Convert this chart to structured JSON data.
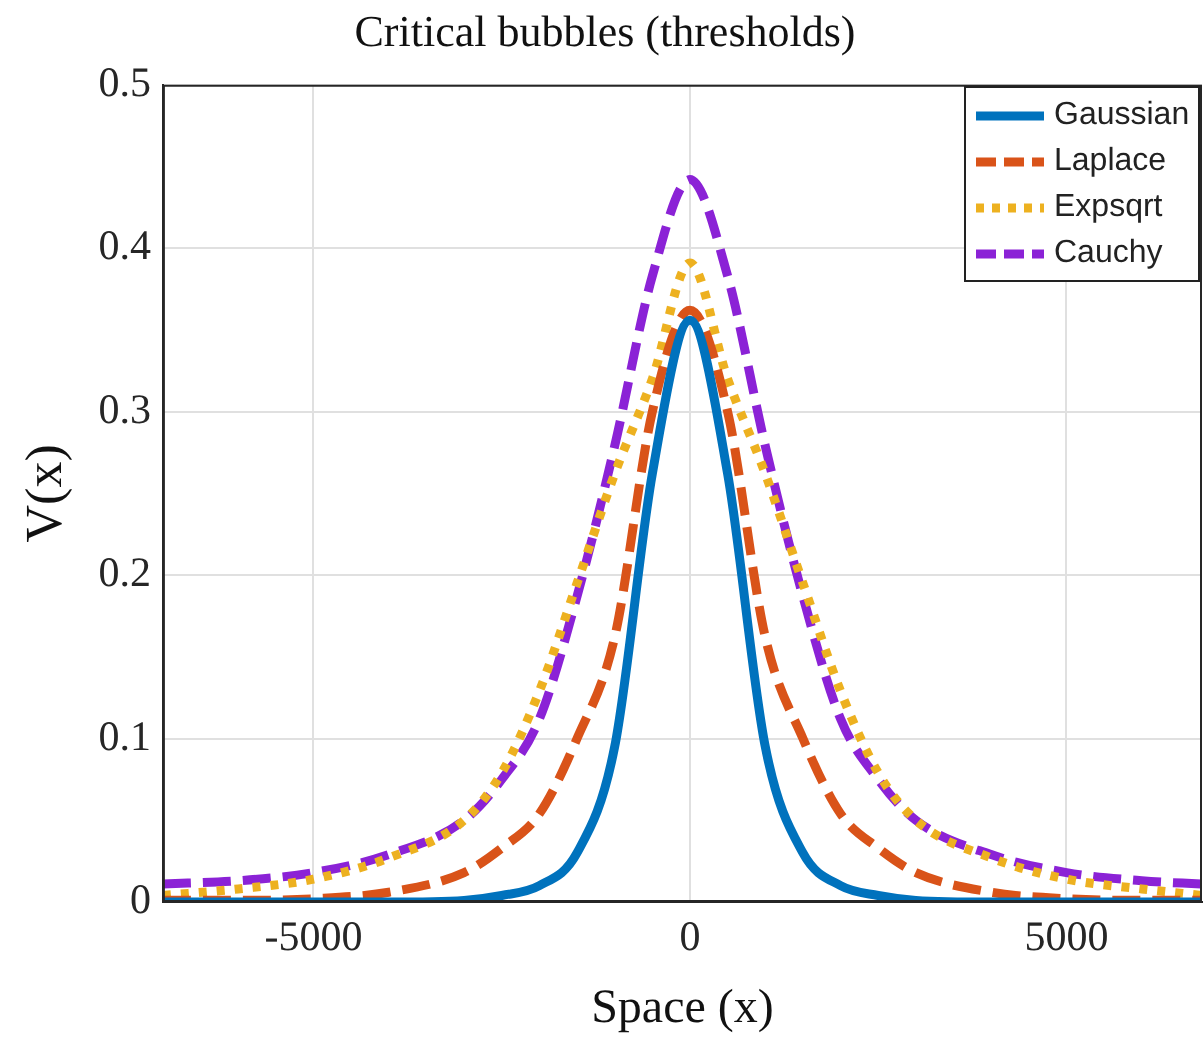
{
  "chart_data": {
    "type": "line",
    "title": "Critical bubbles (thresholds)",
    "xlabel": "Space (x)",
    "ylabel": "V(x)",
    "x": [
      -7000,
      -6000,
      -5000,
      -4000,
      -3000,
      -2500,
      -2000,
      -1500,
      -1000,
      -500,
      0,
      500,
      1000,
      1500,
      2000,
      2500,
      3000,
      4000,
      5000,
      6000,
      6800
    ],
    "series": [
      {
        "name": "Gaussian",
        "color": "#0072bd",
        "line_style": "solid",
        "values": [
          0,
          0,
          0,
          0,
          0.001,
          0.004,
          0.01,
          0.03,
          0.095,
          0.262,
          0.356,
          0.262,
          0.095,
          0.03,
          0.01,
          0.004,
          0.001,
          0,
          0,
          0,
          0
        ]
      },
      {
        "name": "Laplace",
        "color": "#d95319",
        "line_style": "dashed",
        "values": [
          0.001,
          0.001,
          0.002,
          0.006,
          0.018,
          0.033,
          0.054,
          0.1,
          0.162,
          0.3,
          0.362,
          0.3,
          0.162,
          0.1,
          0.054,
          0.033,
          0.018,
          0.006,
          0.002,
          0.001,
          0.001
        ]
      },
      {
        "name": "Expsqrt",
        "color": "#edb120",
        "line_style": "dotted",
        "values": [
          0.004,
          0.008,
          0.014,
          0.027,
          0.05,
          0.079,
          0.129,
          0.195,
          0.262,
          0.32,
          0.391,
          0.32,
          0.262,
          0.195,
          0.129,
          0.079,
          0.05,
          0.027,
          0.014,
          0.008,
          0.004
        ]
      },
      {
        "name": "Cauchy",
        "color": "#8b22d6",
        "line_style": "dashed",
        "values": [
          0.011,
          0.013,
          0.018,
          0.029,
          0.05,
          0.075,
          0.112,
          0.187,
          0.279,
          0.383,
          0.442,
          0.383,
          0.279,
          0.187,
          0.112,
          0.075,
          0.05,
          0.029,
          0.018,
          0.013,
          0.011
        ]
      }
    ],
    "xlim": [
      -7000,
      6800
    ],
    "xticks": [
      -5000,
      0,
      5000
    ],
    "ylim": [
      0,
      0.5
    ],
    "yticks": [
      0,
      0.1,
      0.2,
      0.3,
      0.4,
      0.5
    ],
    "grid": true,
    "legend": "top right",
    "marker": "none"
  }
}
